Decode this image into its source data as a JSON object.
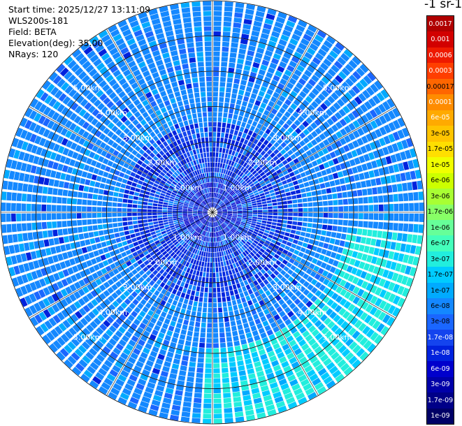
{
  "header": {
    "start_time": "Start time: 2025/12/27 13:11:09",
    "instrument": "WLS200s-181",
    "field": "Field: BETA",
    "elevation": "Elevation(deg): 35.00",
    "nrays": "NRays: 120"
  },
  "colorbar": {
    "title": "-1 sr-1",
    "labels": [
      "0.0017",
      "0.001",
      "0.0006",
      "0.0003",
      "0.00017",
      "0.0001",
      "6e-05",
      "3e-05",
      "1.7e-05",
      "1e-05",
      "6e-06",
      "3e-06",
      "1.7e-06",
      "1e-06",
      "6e-07",
      "3e-07",
      "1.7e-07",
      "1e-07",
      "6e-08",
      "3e-08",
      "1.7e-08",
      "1e-08",
      "6e-09",
      "3e-09",
      "1.7e-09",
      "1e-09"
    ],
    "colors": [
      "#b00000",
      "#d20000",
      "#ee1a00",
      "#ff3e00",
      "#ff6600",
      "#ff8c00",
      "#ffaa00",
      "#ffc400",
      "#ffdf00",
      "#f0ff00",
      "#ccff00",
      "#a8ff33",
      "#88ff66",
      "#66ff99",
      "#44ffbb",
      "#22eedd",
      "#00ccff",
      "#00aaff",
      "#1488ff",
      "#1a66ff",
      "#1444ee",
      "#0022dd",
      "#0000cc",
      "#0000a8",
      "#000088",
      "#000066"
    ],
    "label_colors": [
      "#ffffff",
      "#ffffff",
      "#ffffff",
      "#ffffff",
      "#000000",
      "#ffffff",
      "#ffffff",
      "#000000",
      "#000000",
      "#000000",
      "#000000",
      "#000000",
      "#000000",
      "#000000",
      "#000000",
      "#000000",
      "#000000",
      "#000000",
      "#000000",
      "#000000",
      "#ffffff",
      "#ffffff",
      "#ffffff",
      "#ffffff",
      "#ffffff",
      "#ffffff"
    ]
  },
  "chart_data": {
    "type": "heatmap",
    "subtype": "polar-ppi",
    "field": "BETA",
    "nrays": 120,
    "elevation_deg": 35.0,
    "range_rings_km": [
      1.0,
      2.0,
      3.0,
      4.0,
      5.0,
      6.0
    ],
    "ring_labels": [
      "1.00km",
      "2.00km",
      "3.00km",
      "4.00km",
      "5.00km",
      "6.00km"
    ],
    "max_range_km": 6.0,
    "background_level": "6e-08",
    "near_center_level": "1e-08",
    "enhanced_sector": {
      "azimuth_deg": [
        95,
        180
      ],
      "range_km": [
        3.8,
        6.0
      ],
      "level": "1.7e-07"
    }
  }
}
